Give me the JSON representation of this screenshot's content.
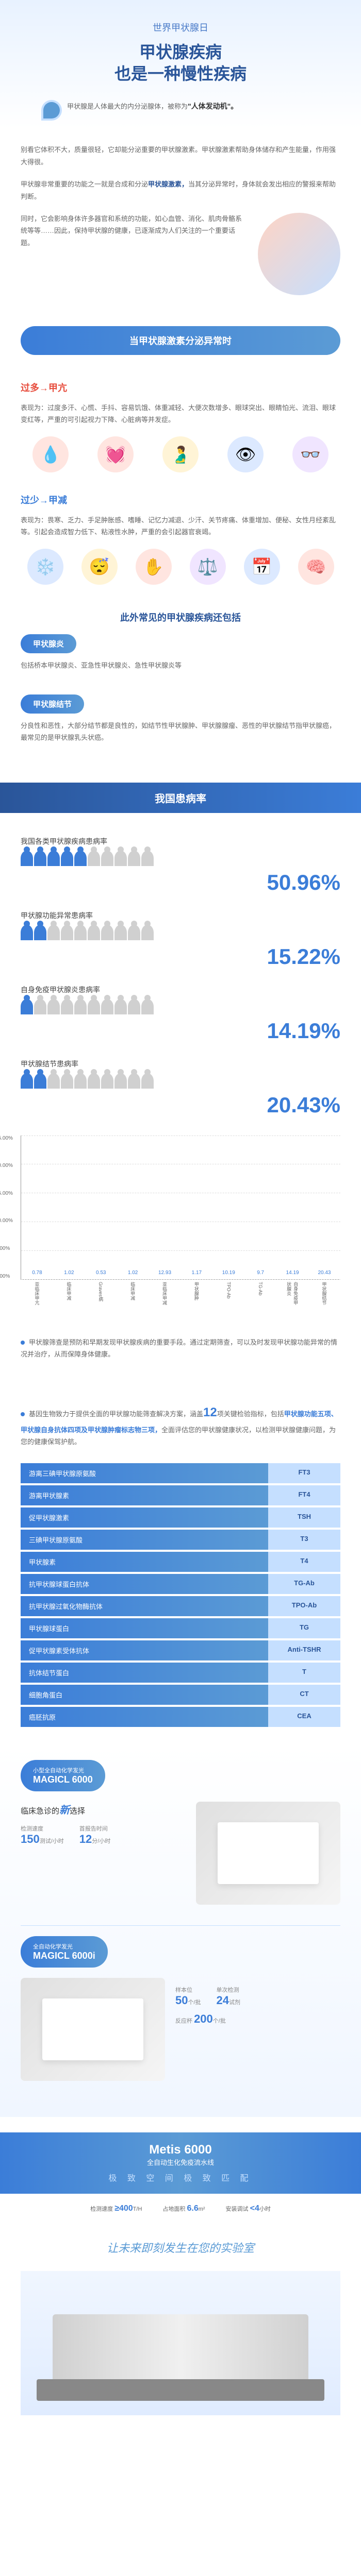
{
  "header": {
    "subtitle": "世界甲状腺日",
    "title_l1": "甲状腺疾病",
    "title_l2": "也是一种慢性疾病",
    "quote": "甲状腺是人体最大的内分泌腺体，被称为",
    "quote_hl": "\"人体发动机\"。"
  },
  "intro": {
    "p1": "别看它体积不大，质量很轻，它却能分泌重要的甲状腺激素。甲状腺激素帮助身体储存和产生能量，作用强大得很。",
    "p2a": "甲状腺非常重要的功能之一就是合成和分泌",
    "p2_hl": "甲状腺激素，",
    "p2b": "当其分泌异常时，身体就会发出相应的警报来帮助判断。",
    "p3": "同时，它会影响身体许多器官和系统的功能，如心血管、消化、肌肉骨骼系统等等……因此，保持甲状腺的健康，已逐渐成为人们关注的一个重要话题。"
  },
  "banner1": "当甲状腺激素分泌异常时",
  "hyper": {
    "title": "过多→甲亢",
    "text": "表现为：过度多汗、心慌、手抖、容易饥饿、体重减轻、大便次数增多、眼球突出、眼睛怕光、流泪、眼球变红等，严重的可引起视力下降、心脏病等并发症。"
  },
  "hypo": {
    "title": "过少→甲减",
    "text": "表现为：畏寒、乏力、手足肿胀感、嗜睡、记忆力减退、少汗、关节疼痛、体重增加、便秘、女性月经紊乱等。引起会造成智力低下、粘液性水肿，严重的会引起器官衰竭。"
  },
  "other_title": "此外常见的甲状腺疾病还包括",
  "inflammation": {
    "label": "甲状腺炎",
    "text": "包括桥本甲状腺炎、亚急性甲状腺炎、急性甲状腺炎等"
  },
  "nodule": {
    "label": "甲状腺结节",
    "text": "分良性和恶性，大部分结节都是良性的，如结节性甲状腺肿、甲状腺腺瘤、恶性的甲状腺结节指甲状腺癌，最常见的是甲状腺乳头状癌。"
  },
  "rate_banner": "我国患病率",
  "rates": [
    {
      "label": "我国各类甲状腺疾病患病率",
      "pct": "50.96%",
      "filled": 5
    },
    {
      "label": "甲状腺功能异常患病率",
      "pct": "15.22%",
      "filled": 2
    },
    {
      "label": "自身免疫甲状腺炎患病率",
      "pct": "14.19%",
      "filled": 1
    },
    {
      "label": "甲状腺结节患病率",
      "pct": "20.43%",
      "filled": 2
    }
  ],
  "chart": {
    "y_ticks": [
      "25.00%",
      "20.00%",
      "15.00%",
      "10.00%",
      "5.00%",
      "0.00%"
    ],
    "y_max": 25,
    "bars": [
      {
        "label": "亚临床甲亢",
        "val": 0.78,
        "txt": "0.78"
      },
      {
        "label": "临床甲减",
        "val": 1.02,
        "txt": "1.02"
      },
      {
        "label": "Graves病",
        "val": 0.53,
        "txt": "0.53"
      },
      {
        "label": "临床甲减",
        "val": 1.02,
        "txt": "1.02"
      },
      {
        "label": "亚临床甲减",
        "val": 12.93,
        "txt": "12.93"
      },
      {
        "label": "甲状腺肿",
        "val": 1.17,
        "txt": "1.17"
      },
      {
        "label": "TPO-Ab",
        "val": 10.19,
        "txt": "10.19"
      },
      {
        "label": "TG-Ab",
        "val": 9.7,
        "txt": "9.7"
      },
      {
        "label": "自身免疫甲状腺炎",
        "val": 14.19,
        "txt": "14.19"
      },
      {
        "label": "甲状腺结节",
        "val": 20.43,
        "txt": "20.43"
      }
    ]
  },
  "screening": "甲状腺筛查是预防和早期发现甲状腺疾病的重要手段。通过定期筛查，可以及时发现甲状腺功能异常的情况并治疗，从而保障身体健康。",
  "gene": {
    "p1a": "基因生物致力于提供全面的甲状腺功能筛查解决方案，涵盖",
    "p1_num": "12",
    "p1b": "项关键检验指标，包括",
    "p1_hl": "甲状腺功能五项、甲状腺自身抗体四项及甲状腺肿瘤标志物三项，",
    "p1c": "全面评估您的甲状腺健康状况，以检测甲状腺健康问题，为您的健康保驾护航。"
  },
  "markers": [
    {
      "name": "游离三碘甲状腺原氨酸",
      "code": "FT3"
    },
    {
      "name": "游离甲状腺素",
      "code": "FT4"
    },
    {
      "name": "促甲状腺激素",
      "code": "TSH"
    },
    {
      "name": "三碘甲状腺原氨酸",
      "code": "T3"
    },
    {
      "name": "甲状腺素",
      "code": "T4"
    },
    {
      "name": "抗甲状腺球蛋白抗体",
      "code": "TG-Ab"
    },
    {
      "name": "抗甲状腺过氧化物酶抗体",
      "code": "TPO-Ab"
    },
    {
      "name": "甲状腺球蛋白",
      "code": "TG"
    },
    {
      "name": "促甲状腺素受体抗体",
      "code": "Anti-TSHR"
    },
    {
      "name": "抗体结节蛋白",
      "code": "T"
    },
    {
      "name": "细胞角蛋白",
      "code": "CT"
    },
    {
      "name": "癌胚抗原",
      "code": "CEA"
    }
  ],
  "prod1": {
    "sub": "小型全自动化学发光",
    "name": "MAGICL 6000",
    "slogan_a": "临床急诊的",
    "slogan_em": "新",
    "slogan_b": "选择",
    "spec1_v": "150",
    "spec1_u": "测试/小时",
    "spec1_l": "检测速度",
    "spec2_v": "12",
    "spec2_u": "分/小时",
    "spec2_l": "首报告时间"
  },
  "prod2": {
    "sub": "全自动化学发光",
    "name": "MAGICL 6000i",
    "spec1_v": "50",
    "spec1_u": "个/批",
    "spec1_l": "样本位",
    "spec2_v": "24",
    "spec2_u": "试剂",
    "spec2_l": "单次检测",
    "spec3_v": "200",
    "spec3_u": "个/批",
    "spec3_l": "反应杯"
  },
  "metis": {
    "name": "Metis 6000",
    "sub": "全自动生化免疫流水线",
    "tag": "极 致 空 间  极 致 匹 配",
    "s1_v": "≥",
    "s1_n": "400",
    "s1_u": "T/H",
    "s1_l": "检测速度",
    "s2_v": "6.6",
    "s2_u": "m²",
    "s2_l": "占地面积",
    "s3_v": "<4",
    "s3_u": "小时",
    "s3_l": "安装调试"
  },
  "tagline": "让未来即刻发生在您的实验室"
}
